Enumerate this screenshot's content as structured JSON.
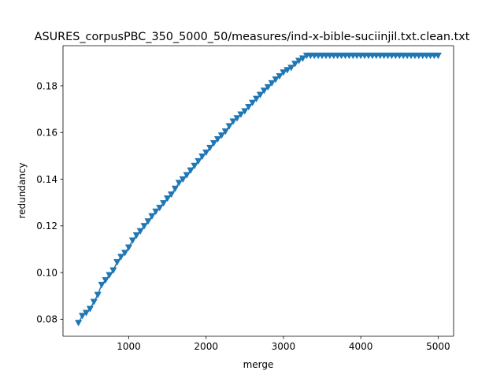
{
  "chart_data": {
    "type": "line",
    "title": "ASURES_corpusPBC_350_5000_50/measures/ind-x-bible-suciinjil.txt.clean.txt",
    "xlabel": "merge",
    "ylabel": "redundancy",
    "xlim": [
      150,
      5200
    ],
    "ylim": [
      0.0727,
      0.1972
    ],
    "xticks": [
      1000,
      2000,
      3000,
      4000,
      5000
    ],
    "xtick_labels": [
      "1000",
      "2000",
      "3000",
      "4000",
      "5000"
    ],
    "yticks": [
      0.08,
      0.1,
      0.12,
      0.14,
      0.16,
      0.18
    ],
    "ytick_labels": [
      "0.08",
      "0.10",
      "0.12",
      "0.14",
      "0.16",
      "0.18"
    ],
    "grid": false,
    "legend": "none",
    "marker": "triangle-down",
    "color": "#1f77b4",
    "series": [
      {
        "x": [
          350,
          400,
          450,
          500,
          550,
          600,
          650,
          700,
          750,
          800,
          850,
          900,
          950,
          1000,
          1050,
          1100,
          1150,
          1200,
          1250,
          1300,
          1350,
          1400,
          1450,
          1500,
          1550,
          1600,
          1650,
          1700,
          1750,
          1800,
          1850,
          1900,
          1950,
          2000,
          2050,
          2100,
          2150,
          2200,
          2250,
          2300,
          2350,
          2400,
          2450,
          2500,
          2550,
          2600,
          2650,
          2700,
          2750,
          2800,
          2850,
          2900,
          2950,
          3000,
          3050,
          3100,
          3150,
          3200,
          3250,
          3300,
          3350,
          3400,
          3450,
          3500,
          3550,
          3600,
          3650,
          3700,
          3750,
          3800,
          3850,
          3900,
          3950,
          4000,
          4050,
          4100,
          4150,
          4200,
          4250,
          4300,
          4350,
          4400,
          4450,
          4500,
          4550,
          4600,
          4650,
          4700,
          4750,
          4800,
          4850,
          4900,
          4950,
          5000
        ],
        "y": [
          0.0785,
          0.0815,
          0.0828,
          0.0845,
          0.0875,
          0.0905,
          0.0948,
          0.0968,
          0.099,
          0.101,
          0.1045,
          0.1068,
          0.1085,
          0.1108,
          0.1138,
          0.116,
          0.1178,
          0.12,
          0.122,
          0.1242,
          0.1262,
          0.1278,
          0.1298,
          0.1318,
          0.1335,
          0.136,
          0.1385,
          0.14,
          0.1418,
          0.1438,
          0.1458,
          0.1478,
          0.1498,
          0.1515,
          0.1535,
          0.1555,
          0.1572,
          0.1588,
          0.1605,
          0.1628,
          0.1648,
          0.1662,
          0.1678,
          0.1692,
          0.171,
          0.1728,
          0.1745,
          0.1762,
          0.178,
          0.1795,
          0.1812,
          0.1828,
          0.1842,
          0.1858,
          0.1868,
          0.1878,
          0.1895,
          0.1908,
          0.1918,
          0.193,
          0.193,
          0.193,
          0.193,
          0.193,
          0.193,
          0.193,
          0.193,
          0.193,
          0.193,
          0.193,
          0.193,
          0.193,
          0.193,
          0.193,
          0.193,
          0.193,
          0.193,
          0.193,
          0.193,
          0.193,
          0.193,
          0.193,
          0.193,
          0.193,
          0.193,
          0.193,
          0.193,
          0.193,
          0.193,
          0.193,
          0.193,
          0.193,
          0.193,
          0.193
        ]
      }
    ]
  }
}
